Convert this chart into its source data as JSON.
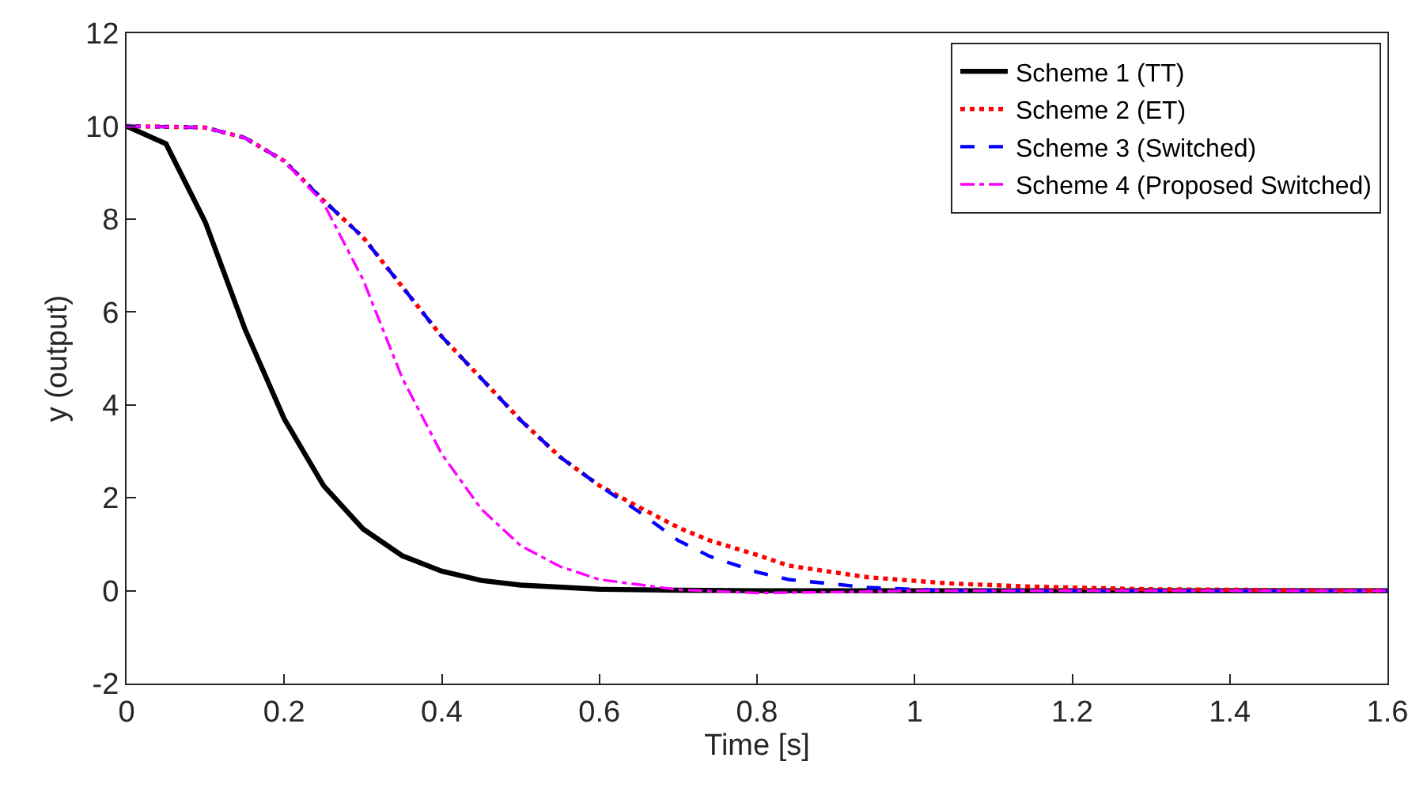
{
  "chart_data": {
    "type": "line",
    "xlabel": "Time [s]",
    "ylabel": "y (output)",
    "xlim": [
      0,
      1.6
    ],
    "ylim": [
      -2,
      12
    ],
    "xticks": [
      0,
      0.2,
      0.4,
      0.6,
      0.8,
      1,
      1.2,
      1.4,
      1.6
    ],
    "yticks": [
      -2,
      0,
      2,
      4,
      6,
      8,
      10,
      12
    ],
    "legend": "top right",
    "marker": "none",
    "series": [
      {
        "name": "Scheme 1 (TT)",
        "color": "#000000",
        "line_style": "solid",
        "x": [
          0,
          0.05,
          0.1,
          0.15,
          0.2,
          0.25,
          0.3,
          0.35,
          0.4,
          0.45,
          0.5,
          0.6,
          0.7,
          0.8,
          1.6
        ],
        "values": [
          10,
          9.62,
          7.93,
          5.64,
          3.7,
          2.26,
          1.33,
          0.75,
          0.42,
          0.22,
          0.12,
          0.03,
          0.01,
          0,
          0
        ]
      },
      {
        "name": "Scheme 2 (ET)",
        "color": "#ff0000",
        "line_style": "dotted",
        "x": [
          0,
          0.1,
          0.15,
          0.2,
          0.25,
          0.3,
          0.35,
          0.4,
          0.45,
          0.5,
          0.55,
          0.6,
          0.65,
          0.7,
          0.74,
          0.8,
          0.84,
          0.94,
          1.04,
          1.14,
          1.3,
          1.6
        ],
        "values": [
          10,
          9.97,
          9.75,
          9.25,
          8.4,
          7.61,
          6.54,
          5.47,
          4.57,
          3.67,
          2.88,
          2.26,
          1.8,
          1.36,
          1.08,
          0.77,
          0.54,
          0.29,
          0.16,
          0.09,
          0.03,
          0
        ]
      },
      {
        "name": "Scheme 3 (Switched)",
        "color": "#0000ff",
        "line_style": "dashed",
        "x": [
          0,
          0.1,
          0.15,
          0.2,
          0.25,
          0.3,
          0.35,
          0.4,
          0.45,
          0.5,
          0.55,
          0.6,
          0.65,
          0.7,
          0.74,
          0.8,
          0.84,
          0.94,
          1.04,
          1.6
        ],
        "values": [
          10,
          9.97,
          9.75,
          9.25,
          8.4,
          7.61,
          6.54,
          5.47,
          4.57,
          3.67,
          2.88,
          2.26,
          1.7,
          1.08,
          0.74,
          0.4,
          0.24,
          0.07,
          0,
          0
        ]
      },
      {
        "name": "Scheme 4 (Proposed Switched)",
        "color": "#ff00ff",
        "line_style": "dashdot",
        "x": [
          0,
          0.1,
          0.15,
          0.2,
          0.25,
          0.3,
          0.35,
          0.4,
          0.45,
          0.5,
          0.55,
          0.6,
          0.7,
          0.8,
          0.9,
          1.0,
          1.6
        ],
        "values": [
          10,
          9.97,
          9.75,
          9.25,
          8.34,
          6.7,
          4.57,
          2.94,
          1.76,
          0.97,
          0.52,
          0.24,
          0.02,
          -0.05,
          -0.03,
          0,
          0
        ]
      }
    ]
  }
}
